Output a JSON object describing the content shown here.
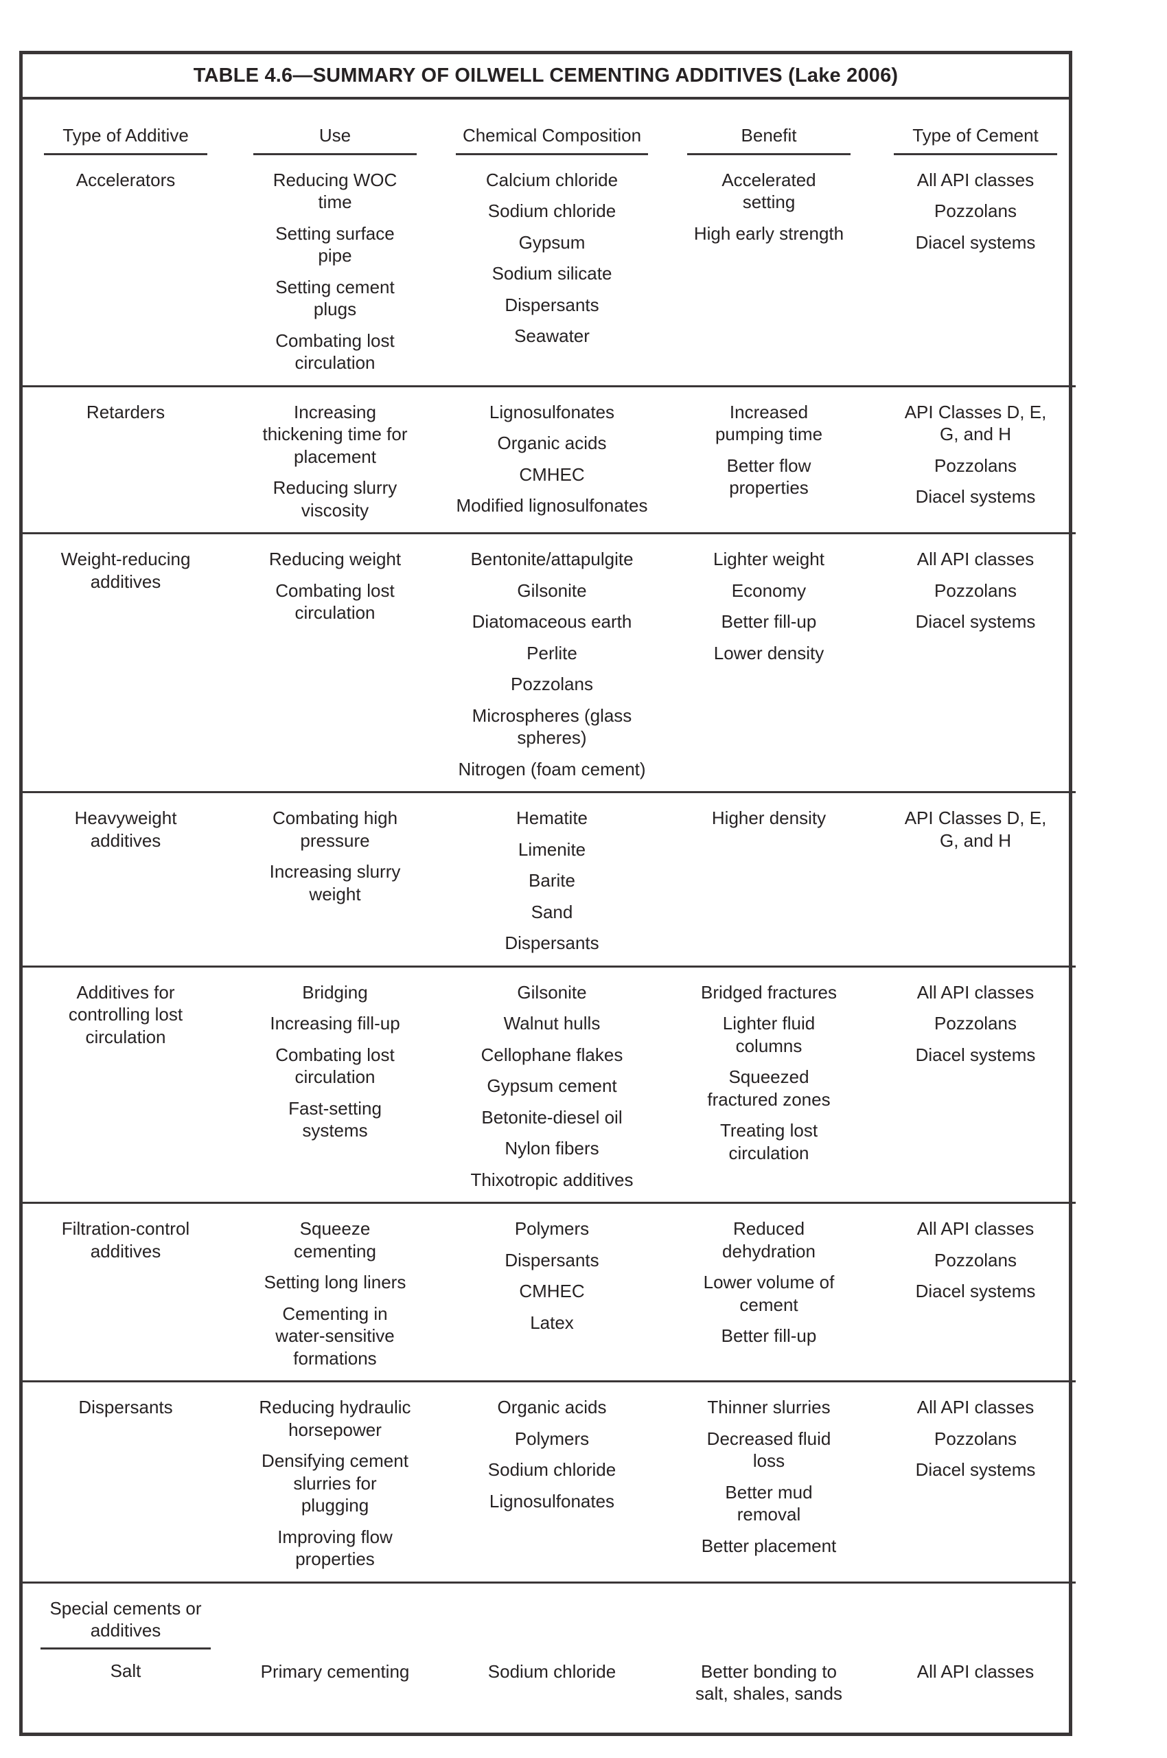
{
  "table": {
    "title": "TABLE 4.6—SUMMARY OF OILWELL CEMENTING ADDITIVES (Lake 2006)",
    "columns": [
      "Type of Additive",
      "Use",
      "Chemical Composition",
      "Benefit",
      "Type of Cement"
    ],
    "rows": [
      {
        "additive": "Accelerators",
        "use": [
          "Reducing WOC time",
          "Setting surface pipe",
          "Setting cement plugs",
          "Combating lost circulation"
        ],
        "chemical_composition": [
          "Calcium chloride",
          "Sodium chloride",
          "Gypsum",
          "Sodium silicate",
          "Dispersants",
          "Seawater"
        ],
        "benefit": [
          "Accelerated setting",
          "High early strength"
        ],
        "type_of_cement": [
          "All API classes",
          "Pozzolans",
          "Diacel systems"
        ]
      },
      {
        "additive": "Retarders",
        "use": [
          "Increasing thickening time for placement",
          "Reducing slurry viscosity"
        ],
        "chemical_composition": [
          "Lignosulfonates",
          "Organic acids",
          "CMHEC",
          "Modified lignosulfonates"
        ],
        "benefit": [
          "Increased pumping time",
          "Better flow properties"
        ],
        "type_of_cement": [
          "API Classes D, E, G, and H",
          "Pozzolans",
          "Diacel systems"
        ]
      },
      {
        "additive": "Weight-reducing additives",
        "use": [
          "Reducing weight",
          "Combating lost circulation"
        ],
        "chemical_composition": [
          "Bentonite/attapulgite",
          "Gilsonite",
          "Diatomaceous earth",
          "Perlite",
          "Pozzolans",
          "Microspheres (glass spheres)",
          "Nitrogen (foam cement)"
        ],
        "benefit": [
          "Lighter weight",
          "Economy",
          "Better fill-up",
          "Lower density"
        ],
        "type_of_cement": [
          "All API classes",
          "Pozzolans",
          "Diacel systems"
        ]
      },
      {
        "additive": "Heavyweight additives",
        "use": [
          "Combating high pressure",
          "Increasing slurry weight"
        ],
        "chemical_composition": [
          "Hematite",
          "Limenite",
          "Barite",
          "Sand",
          "Dispersants"
        ],
        "benefit": [
          "Higher density"
        ],
        "type_of_cement": [
          "API Classes D, E, G, and H"
        ]
      },
      {
        "additive": "Additives for controlling lost circulation",
        "use": [
          "Bridging",
          "Increasing fill-up",
          "Combating lost circulation",
          "Fast-setting systems"
        ],
        "chemical_composition": [
          "Gilsonite",
          "Walnut hulls",
          "Cellophane flakes",
          "Gypsum cement",
          "Betonite-diesel oil",
          "Nylon fibers",
          "Thixotropic additives"
        ],
        "benefit": [
          "Bridged fractures",
          "Lighter fluid columns",
          "Squeezed fractured zones",
          "Treating lost circulation"
        ],
        "type_of_cement": [
          "All API classes",
          "Pozzolans",
          "Diacel systems"
        ]
      },
      {
        "additive": "Filtration-control additives",
        "use": [
          "Squeeze cementing",
          "Setting long liners",
          "Cementing in water-sensitive formations"
        ],
        "chemical_composition": [
          "Polymers",
          "Dispersants",
          "CMHEC",
          "Latex"
        ],
        "benefit": [
          "Reduced dehydration",
          "Lower volume of cement",
          "Better fill-up"
        ],
        "type_of_cement": [
          "All API classes",
          "Pozzolans",
          "Diacel systems"
        ]
      },
      {
        "additive": "Dispersants",
        "use": [
          "Reducing hydraulic horsepower",
          "Densifying cement slurries for plugging",
          "Improving flow properties"
        ],
        "chemical_composition": [
          "Organic acids",
          "Polymers",
          "Sodium chloride",
          "Lignosulfonates"
        ],
        "benefit": [
          "Thinner slurries",
          "Decreased fluid loss",
          "Better mud removal",
          "Better placement"
        ],
        "type_of_cement": [
          "All API classes",
          "Pozzolans",
          "Diacel systems"
        ]
      },
      {
        "group_header": "Special cements or additives",
        "additive": "Salt",
        "use": [
          "Primary cementing"
        ],
        "chemical_composition": [
          "Sodium chloride"
        ],
        "benefit": [
          "Better bonding to salt, shales, sands"
        ],
        "type_of_cement": [
          "All API classes"
        ]
      }
    ]
  }
}
